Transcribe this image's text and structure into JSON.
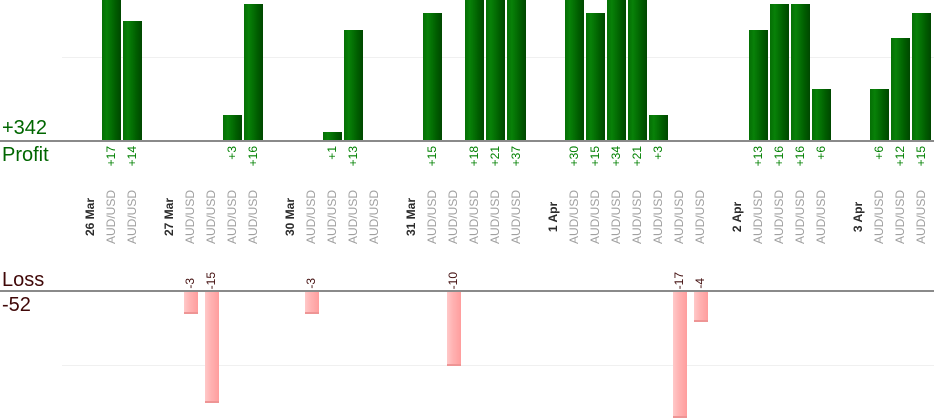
{
  "profit_summary": {
    "total": "+342",
    "label": "Profit"
  },
  "loss_summary": {
    "label": "Loss",
    "total": "-52"
  },
  "colors": {
    "profit_bar_light": "#088108",
    "profit_bar_dark": "#004700",
    "loss_bar_light": "#ffc9c9",
    "loss_bar_dark": "#ff9d9d",
    "profit_value_text": "#008000",
    "loss_value_text": "#451111",
    "summary_green": "#006600",
    "summary_maroon": "#400808",
    "date_text": "#2b2b2b",
    "pair_text": "#a0a0a0",
    "axis_line": "#8a8a8a",
    "gridline": "#f0f0f0"
  },
  "chart_data": {
    "type": "bar",
    "title": "",
    "profit_total": 342,
    "loss_total": -52,
    "gridlines": {
      "profit_at": 10,
      "loss_at": -10
    },
    "groups": [
      {
        "date": "26 Mar",
        "trades": [
          {
            "pair": "AUD/USD",
            "value": 17,
            "label": "+17"
          },
          {
            "pair": "AUD/USD",
            "value": 14,
            "label": "+14"
          }
        ]
      },
      {
        "date": "27 Mar",
        "trades": [
          {
            "pair": "AUD/USD",
            "value": -3,
            "label": "-3"
          },
          {
            "pair": "AUD/USD",
            "value": -15,
            "label": "-15"
          },
          {
            "pair": "AUD/USD",
            "value": 3,
            "label": "+3"
          },
          {
            "pair": "AUD/USD",
            "value": 16,
            "label": "+16"
          }
        ]
      },
      {
        "date": "30 Mar",
        "trades": [
          {
            "pair": "AUD/USD",
            "value": -3,
            "label": "-3"
          },
          {
            "pair": "AUD/USD",
            "value": 1,
            "label": "+1"
          },
          {
            "pair": "AUD/USD",
            "value": 13,
            "label": "+13"
          },
          {
            "pair": "AUD/USD",
            "value": 0,
            "label": ""
          }
        ]
      },
      {
        "date": "31 Mar",
        "trades": [
          {
            "pair": "AUD/USD",
            "value": 15,
            "label": "+15"
          },
          {
            "pair": "AUD/USD",
            "value": -10,
            "label": "-10"
          },
          {
            "pair": "AUD/USD",
            "value": 18,
            "label": "+18"
          },
          {
            "pair": "AUD/USD",
            "value": 21,
            "label": "+21"
          },
          {
            "pair": "AUD/USD",
            "value": 37,
            "label": "+37"
          }
        ]
      },
      {
        "date": "1 Apr",
        "trades": [
          {
            "pair": "AUD/USD",
            "value": 30,
            "label": "+30"
          },
          {
            "pair": "AUD/USD",
            "value": 15,
            "label": "+15"
          },
          {
            "pair": "AUD/USD",
            "value": 34,
            "label": "+34"
          },
          {
            "pair": "AUD/USD",
            "value": 21,
            "label": "+21"
          },
          {
            "pair": "AUD/USD",
            "value": 3,
            "label": "+3"
          },
          {
            "pair": "AUD/USD",
            "value": -17,
            "label": "-17"
          },
          {
            "pair": "AUD/USD",
            "value": -4,
            "label": "-4"
          }
        ]
      },
      {
        "date": "2 Apr",
        "trades": [
          {
            "pair": "AUD/USD",
            "value": 13,
            "label": "+13"
          },
          {
            "pair": "AUD/USD",
            "value": 16,
            "label": "+16"
          },
          {
            "pair": "AUD/USD",
            "value": 16,
            "label": "+16"
          },
          {
            "pair": "AUD/USD",
            "value": 6,
            "label": "+6"
          }
        ]
      },
      {
        "date": "3 Apr",
        "trades": [
          {
            "pair": "AUD/USD",
            "value": 6,
            "label": "+6"
          },
          {
            "pair": "AUD/USD",
            "value": 12,
            "label": "+12"
          },
          {
            "pair": "AUD/USD",
            "value": 15,
            "label": "+15"
          }
        ]
      }
    ]
  }
}
